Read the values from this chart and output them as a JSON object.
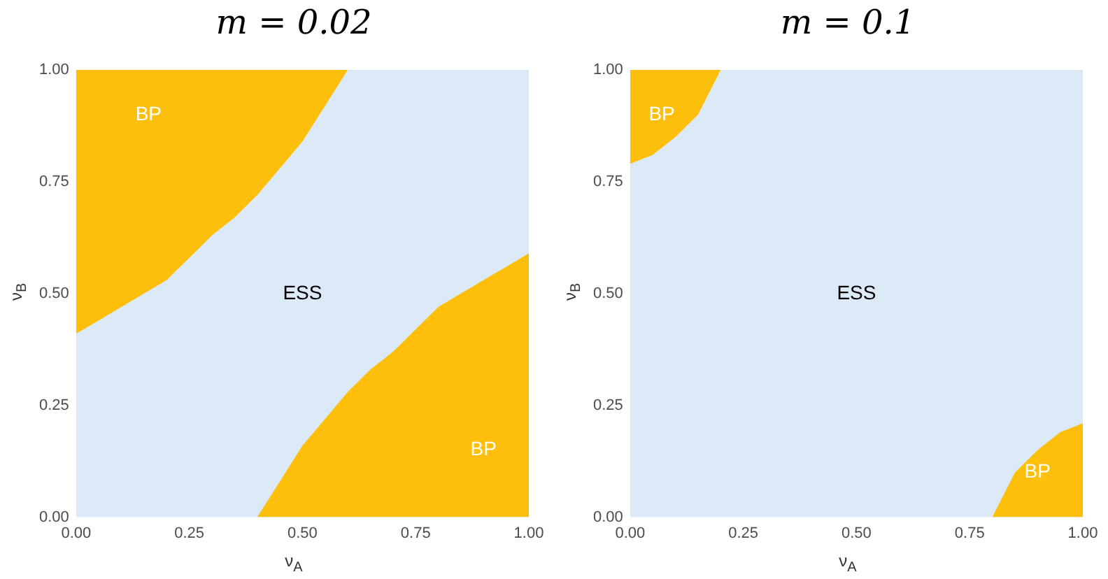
{
  "chart_data": [
    {
      "type": "area",
      "title": "m = 0.02",
      "xlabel": "ν$_{A}$",
      "ylabel": "ν$_{B}$",
      "xlim": [
        0,
        1
      ],
      "ylim": [
        0,
        1
      ],
      "xticks": [
        {
          "value": 0,
          "label": "0.00"
        },
        {
          "value": 0.25,
          "label": "0.25"
        },
        {
          "value": 0.5,
          "label": "0.50"
        },
        {
          "value": 0.75,
          "label": "0.75"
        },
        {
          "value": 1,
          "label": "1.00"
        }
      ],
      "yticks": [
        {
          "value": 0,
          "label": "0.00"
        },
        {
          "value": 0.25,
          "label": "0.25"
        },
        {
          "value": 0.5,
          "label": "0.50"
        },
        {
          "value": 0.75,
          "label": "0.75"
        },
        {
          "value": 1,
          "label": "1.00"
        }
      ],
      "series": [
        {
          "color": "#fdbf0b",
          "x": [
            0,
            0,
            0.05,
            0.1,
            0.15,
            0.2,
            0.25,
            0.3,
            0.35,
            0.4,
            0.45,
            0.5,
            0.55,
            0.6
          ],
          "values": [
            1,
            0.41,
            0.44,
            0.47,
            0.5,
            0.53,
            0.58,
            0.63,
            0.67,
            0.72,
            0.78,
            0.84,
            0.92,
            1.0
          ]
        },
        {
          "color": "#fdbf0b",
          "x": [
            0.4,
            0.45,
            0.5,
            0.55,
            0.6,
            0.65,
            0.7,
            0.75,
            0.8,
            0.85,
            0.9,
            0.95,
            1
          ],
          "values": [
            0,
            0.08,
            0.16,
            0.22,
            0.28,
            0.33,
            0.37,
            0.42,
            0.47,
            0.5,
            0.53,
            0.56,
            0.59
          ]
        }
      ],
      "annotations": [
        "BP",
        "ESS",
        "BP"
      ]
    },
    {
      "type": "area",
      "title": "m = 0.1",
      "xlabel": "ν$_{A}$",
      "ylabel": "ν$_{B}$",
      "xlim": [
        0,
        1
      ],
      "ylim": [
        0,
        1
      ],
      "xticks": [
        {
          "value": 0,
          "label": "0.00"
        },
        {
          "value": 0.25,
          "label": "0.25"
        },
        {
          "value": 0.5,
          "label": "0.50"
        },
        {
          "value": 0.75,
          "label": "0.75"
        },
        {
          "value": 1,
          "label": "1.00"
        }
      ],
      "yticks": [
        {
          "value": 0,
          "label": "0.00"
        },
        {
          "value": 0.25,
          "label": "0.25"
        },
        {
          "value": 0.5,
          "label": "0.50"
        },
        {
          "value": 0.75,
          "label": "0.75"
        },
        {
          "value": 1,
          "label": "1.00"
        }
      ],
      "series": [
        {
          "color": "#fdbf0b",
          "x": [
            0,
            0,
            0.05,
            0.1,
            0.15,
            0.2
          ],
          "values": [
            1,
            0.79,
            0.81,
            0.85,
            0.9,
            1.0
          ]
        },
        {
          "color": "#fdbf0b",
          "x": [
            0.8,
            0.85,
            0.9,
            0.95,
            1
          ],
          "values": [
            0,
            0.1,
            0.15,
            0.19,
            0.21
          ]
        }
      ],
      "annotations": [
        "BP",
        "ESS",
        "BP"
      ]
    }
  ]
}
